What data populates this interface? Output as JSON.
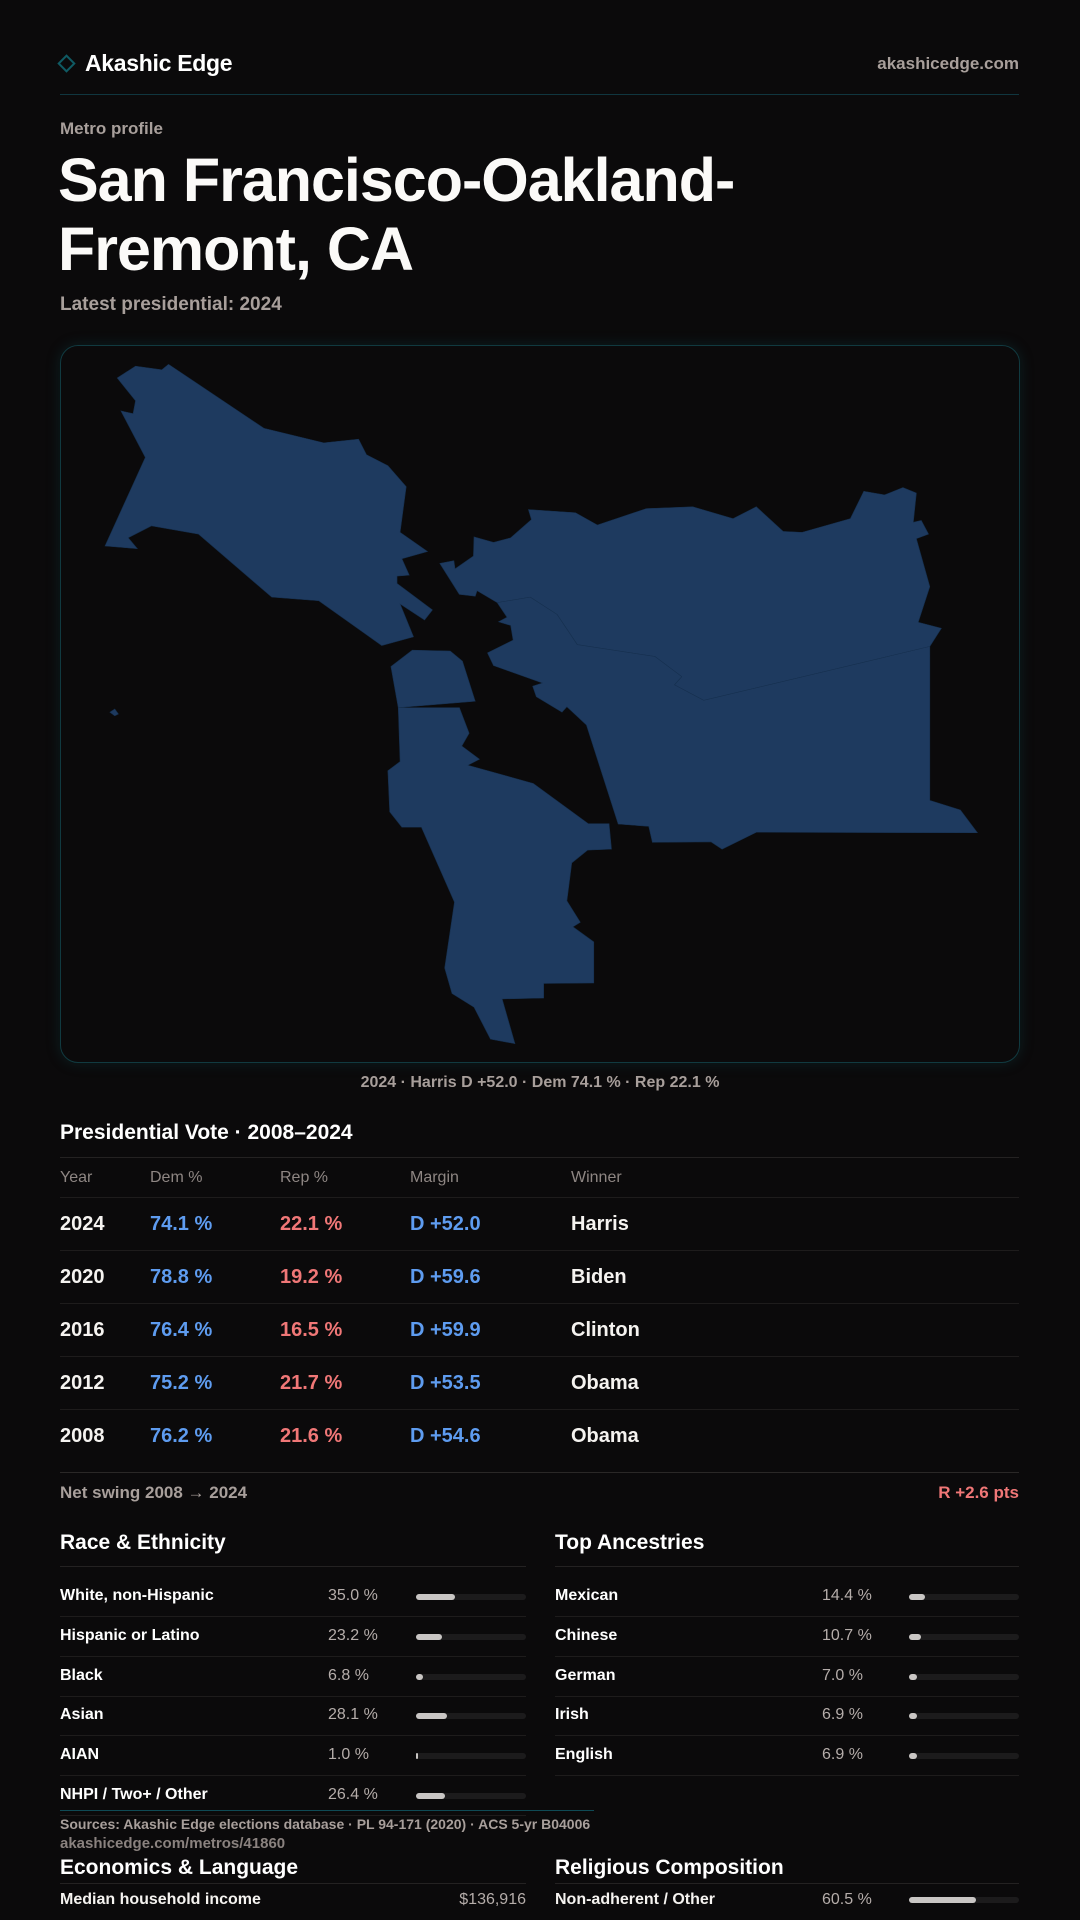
{
  "header": {
    "brand": "Akashic Edge",
    "site": "akashicedge.com"
  },
  "profile": {
    "kicker": "Metro profile",
    "title": "San Francisco-Oakland-Fremont, CA",
    "latest": "Latest presidential: 2024"
  },
  "map": {
    "caption": "2024 · Harris D +52.0 · Dem 74.1 % · Rep 22.1 %",
    "fill": "#1e3a5f"
  },
  "vote": {
    "title": "Presidential Vote · 2008–2024",
    "headers": [
      "Year",
      "Dem %",
      "Rep %",
      "Margin",
      "Winner"
    ],
    "rows": [
      {
        "year": "2024",
        "dem": "74.1 %",
        "rep": "22.1 %",
        "margin": "D +52.0",
        "winner": "Harris"
      },
      {
        "year": "2020",
        "dem": "78.8 %",
        "rep": "19.2 %",
        "margin": "D +59.6",
        "winner": "Biden"
      },
      {
        "year": "2016",
        "dem": "76.4 %",
        "rep": "16.5 %",
        "margin": "D +59.9",
        "winner": "Clinton"
      },
      {
        "year": "2012",
        "dem": "75.2 %",
        "rep": "21.7 %",
        "margin": "D +53.5",
        "winner": "Obama"
      },
      {
        "year": "2008",
        "dem": "76.2 %",
        "rep": "21.6 %",
        "margin": "D +54.6",
        "winner": "Obama"
      }
    ],
    "swing_label": "Net swing 2008 → 2024",
    "swing_value": "R +2.6 pts"
  },
  "race": {
    "title": "Race & Ethnicity",
    "rows": [
      {
        "label": "White, non-Hispanic",
        "pct": "35.0 %",
        "value": 35.0
      },
      {
        "label": "Hispanic or Latino",
        "pct": "23.2 %",
        "value": 23.2
      },
      {
        "label": "Black",
        "pct": "6.8 %",
        "value": 6.8
      },
      {
        "label": "Asian",
        "pct": "28.1 %",
        "value": 28.1
      },
      {
        "label": "AIAN",
        "pct": "1.0 %",
        "value": 1.0
      },
      {
        "label": "NHPI / Two+ / Other",
        "pct": "26.4 %",
        "value": 26.4
      }
    ]
  },
  "ancestry": {
    "title": "Top Ancestries",
    "rows": [
      {
        "label": "Mexican",
        "pct": "14.4 %",
        "value": 14.4
      },
      {
        "label": "Chinese",
        "pct": "10.7 %",
        "value": 10.7
      },
      {
        "label": "German",
        "pct": "7.0 %",
        "value": 7.0
      },
      {
        "label": "Irish",
        "pct": "6.9 %",
        "value": 6.9
      },
      {
        "label": "English",
        "pct": "6.9 %",
        "value": 6.9
      }
    ]
  },
  "footer": {
    "sources": "Sources: Akashic Edge elections database · PL 94-171 (2020) · ACS 5-yr B04006",
    "url": "akashicedge.com/metros/41860"
  },
  "econ": {
    "title": "Economics & Language",
    "rows": [
      {
        "label": "Median household income",
        "value": "$136,916"
      }
    ]
  },
  "religion": {
    "title": "Religious Composition",
    "rows": [
      {
        "label": "Non-adherent / Other",
        "pct": "60.5 %",
        "value": 60.5
      }
    ]
  }
}
